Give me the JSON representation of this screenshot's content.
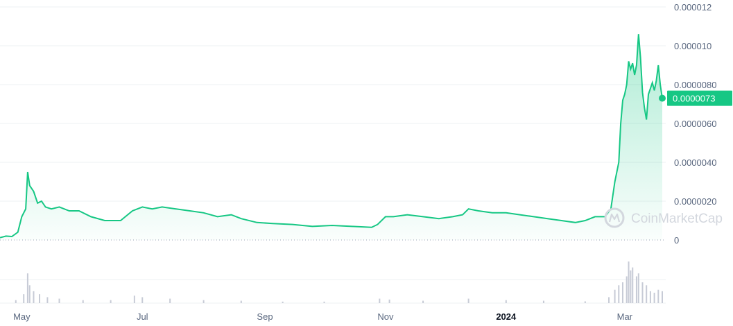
{
  "chart_data": {
    "type": "area",
    "y_axis": {
      "min": 0,
      "max": 1.2e-05,
      "ticks": [
        {
          "value": 1.2e-05,
          "label": "0.000012"
        },
        {
          "value": 1e-05,
          "label": "0.000010"
        },
        {
          "value": 8e-06,
          "label": "0.0000080"
        },
        {
          "value": 6e-06,
          "label": "0.0000060"
        },
        {
          "value": 4e-06,
          "label": "0.0000040"
        },
        {
          "value": 2e-06,
          "label": "0.0000020"
        },
        {
          "value": 0,
          "label": "0"
        }
      ]
    },
    "x_axis": {
      "start": "2023-04-20",
      "end": "2024-03-20",
      "ticks": [
        {
          "date": "2023-05-01",
          "label": "May",
          "bold": false
        },
        {
          "date": "2023-07-01",
          "label": "Jul",
          "bold": false
        },
        {
          "date": "2023-09-01",
          "label": "Sep",
          "bold": false
        },
        {
          "date": "2023-11-01",
          "label": "Nov",
          "bold": false
        },
        {
          "date": "2024-01-01",
          "label": "2024",
          "bold": true
        },
        {
          "date": "2024-03-01",
          "label": "Mar",
          "bold": false
        }
      ]
    },
    "grid": true,
    "series": [
      {
        "color": "#16c784",
        "points": [
          [
            "2023-04-20",
            1.2e-07
          ],
          [
            "2023-04-23",
            2e-07
          ],
          [
            "2023-04-26",
            1.8e-07
          ],
          [
            "2023-04-29",
            4e-07
          ],
          [
            "2023-05-01",
            1.2e-06
          ],
          [
            "2023-05-03",
            1.6e-06
          ],
          [
            "2023-05-04",
            3.5e-06
          ],
          [
            "2023-05-05",
            2.8e-06
          ],
          [
            "2023-05-07",
            2.5e-06
          ],
          [
            "2023-05-09",
            1.9e-06
          ],
          [
            "2023-05-11",
            2e-06
          ],
          [
            "2023-05-13",
            1.7e-06
          ],
          [
            "2023-05-16",
            1.6e-06
          ],
          [
            "2023-05-20",
            1.7e-06
          ],
          [
            "2023-05-25",
            1.5e-06
          ],
          [
            "2023-05-30",
            1.5e-06
          ],
          [
            "2023-06-05",
            1.2e-06
          ],
          [
            "2023-06-12",
            1e-06
          ],
          [
            "2023-06-20",
            1e-06
          ],
          [
            "2023-06-26",
            1.5e-06
          ],
          [
            "2023-07-01",
            1.7e-06
          ],
          [
            "2023-07-06",
            1.6e-06
          ],
          [
            "2023-07-11",
            1.7e-06
          ],
          [
            "2023-07-18",
            1.6e-06
          ],
          [
            "2023-07-25",
            1.5e-06
          ],
          [
            "2023-08-01",
            1.4e-06
          ],
          [
            "2023-08-08",
            1.2e-06
          ],
          [
            "2023-08-15",
            1.3e-06
          ],
          [
            "2023-08-20",
            1.1e-06
          ],
          [
            "2023-08-28",
            9e-07
          ],
          [
            "2023-09-05",
            8.5e-07
          ],
          [
            "2023-09-15",
            8e-07
          ],
          [
            "2023-09-25",
            7e-07
          ],
          [
            "2023-10-05",
            7.5e-07
          ],
          [
            "2023-10-15",
            7e-07
          ],
          [
            "2023-10-25",
            6.5e-07
          ],
          [
            "2023-10-28",
            8e-07
          ],
          [
            "2023-11-01",
            1.2e-06
          ],
          [
            "2023-11-05",
            1.2e-06
          ],
          [
            "2023-11-12",
            1.3e-06
          ],
          [
            "2023-11-20",
            1.2e-06
          ],
          [
            "2023-11-28",
            1.1e-06
          ],
          [
            "2023-12-05",
            1.2e-06
          ],
          [
            "2023-12-10",
            1.3e-06
          ],
          [
            "2023-12-13",
            1.6e-06
          ],
          [
            "2023-12-18",
            1.5e-06
          ],
          [
            "2023-12-25",
            1.4e-06
          ],
          [
            "2024-01-01",
            1.4e-06
          ],
          [
            "2024-01-08",
            1.3e-06
          ],
          [
            "2024-01-15",
            1.2e-06
          ],
          [
            "2024-01-22",
            1.1e-06
          ],
          [
            "2024-01-29",
            1e-06
          ],
          [
            "2024-02-05",
            9e-07
          ],
          [
            "2024-02-10",
            1e-06
          ],
          [
            "2024-02-15",
            1.2e-06
          ],
          [
            "2024-02-20",
            1.2e-06
          ],
          [
            "2024-02-23",
            1.6e-06
          ],
          [
            "2024-02-25",
            3e-06
          ],
          [
            "2024-02-27",
            4e-06
          ],
          [
            "2024-02-28",
            6e-06
          ],
          [
            "2024-02-29",
            7.2e-06
          ],
          [
            "2024-03-01",
            7.5e-06
          ],
          [
            "2024-03-02",
            8e-06
          ],
          [
            "2024-03-03",
            9.2e-06
          ],
          [
            "2024-03-04",
            8.8e-06
          ],
          [
            "2024-03-05",
            9.1e-06
          ],
          [
            "2024-03-06",
            8.5e-06
          ],
          [
            "2024-03-07",
            9e-06
          ],
          [
            "2024-03-08",
            1.06e-05
          ],
          [
            "2024-03-09",
            9.4e-06
          ],
          [
            "2024-03-10",
            7.6e-06
          ],
          [
            "2024-03-11",
            6.8e-06
          ],
          [
            "2024-03-12",
            6.2e-06
          ],
          [
            "2024-03-13",
            7.5e-06
          ],
          [
            "2024-03-14",
            7.8e-06
          ],
          [
            "2024-03-15",
            8.1e-06
          ],
          [
            "2024-03-16",
            7.7e-06
          ],
          [
            "2024-03-17",
            8.2e-06
          ],
          [
            "2024-03-18",
            9e-06
          ],
          [
            "2024-03-19",
            8e-06
          ],
          [
            "2024-03-20",
            7.3e-06
          ]
        ]
      }
    ],
    "current_price": {
      "value": 7.3e-06,
      "label": "0.0000073",
      "color": "#16c784"
    },
    "volume": {
      "color": "#c7cbd6",
      "description_free": true,
      "relative_bars": [
        [
          "2023-04-28",
          0.1
        ],
        [
          "2023-05-02",
          0.3
        ],
        [
          "2023-05-04",
          1.0
        ],
        [
          "2023-05-05",
          0.6
        ],
        [
          "2023-05-07",
          0.4
        ],
        [
          "2023-05-10",
          0.3
        ],
        [
          "2023-05-14",
          0.2
        ],
        [
          "2023-05-20",
          0.15
        ],
        [
          "2023-06-01",
          0.1
        ],
        [
          "2023-06-15",
          0.1
        ],
        [
          "2023-06-27",
          0.25
        ],
        [
          "2023-07-01",
          0.2
        ],
        [
          "2023-07-15",
          0.15
        ],
        [
          "2023-08-01",
          0.1
        ],
        [
          "2023-08-20",
          0.08
        ],
        [
          "2023-09-10",
          0.05
        ],
        [
          "2023-10-01",
          0.05
        ],
        [
          "2023-10-29",
          0.15
        ],
        [
          "2023-11-03",
          0.12
        ],
        [
          "2023-11-20",
          0.08
        ],
        [
          "2023-12-13",
          0.15
        ],
        [
          "2024-01-01",
          0.1
        ],
        [
          "2024-01-20",
          0.08
        ],
        [
          "2024-02-10",
          0.06
        ],
        [
          "2024-02-22",
          0.2
        ],
        [
          "2024-02-25",
          0.45
        ],
        [
          "2024-02-27",
          0.6
        ],
        [
          "2024-02-29",
          0.7
        ],
        [
          "2024-03-02",
          0.9
        ],
        [
          "2024-03-03",
          1.4
        ],
        [
          "2024-03-04",
          1.1
        ],
        [
          "2024-03-05",
          1.2
        ],
        [
          "2024-03-07",
          0.9
        ],
        [
          "2024-03-08",
          1.0
        ],
        [
          "2024-03-10",
          0.7
        ],
        [
          "2024-03-12",
          0.6
        ],
        [
          "2024-03-14",
          0.4
        ],
        [
          "2024-03-16",
          0.35
        ],
        [
          "2024-03-18",
          0.45
        ],
        [
          "2024-03-20",
          0.4
        ]
      ]
    },
    "watermark": "CoinMarketCap"
  }
}
